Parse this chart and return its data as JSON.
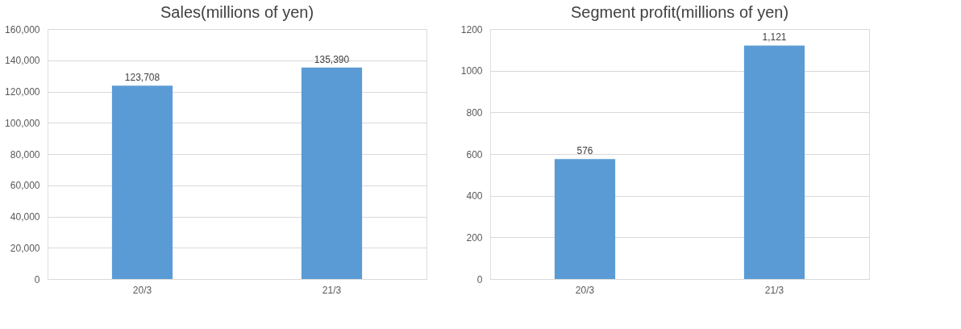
{
  "chart_data": [
    {
      "type": "bar",
      "title": "Sales(millions of yen)",
      "categories": [
        "20/3",
        "21/3"
      ],
      "values": [
        123708,
        135390
      ],
      "value_labels": [
        "123,708",
        "135,390"
      ],
      "color": "#5b9bd5",
      "ylim": [
        0,
        160000
      ],
      "yticks": [
        {
          "value": 0,
          "label": "0"
        },
        {
          "value": 20000,
          "label": "20,000"
        },
        {
          "value": 40000,
          "label": "40,000"
        },
        {
          "value": 60000,
          "label": "60,000"
        },
        {
          "value": 80000,
          "label": "80,000"
        },
        {
          "value": 100000,
          "label": "100,000"
        },
        {
          "value": 120000,
          "label": "120,000"
        },
        {
          "value": 140000,
          "label": "140,000"
        },
        {
          "value": 160000,
          "label": "160,000"
        }
      ],
      "grid": "y"
    },
    {
      "type": "bar",
      "title": "Segment profit(millions of yen)",
      "categories": [
        "20/3",
        "21/3"
      ],
      "values": [
        576,
        1121
      ],
      "value_labels": [
        "576",
        "1,121"
      ],
      "color": "#5b9bd5",
      "ylim": [
        0,
        1200
      ],
      "yticks": [
        0,
        200,
        400,
        600,
        800,
        1000,
        1200
      ],
      "grid": "y"
    }
  ]
}
